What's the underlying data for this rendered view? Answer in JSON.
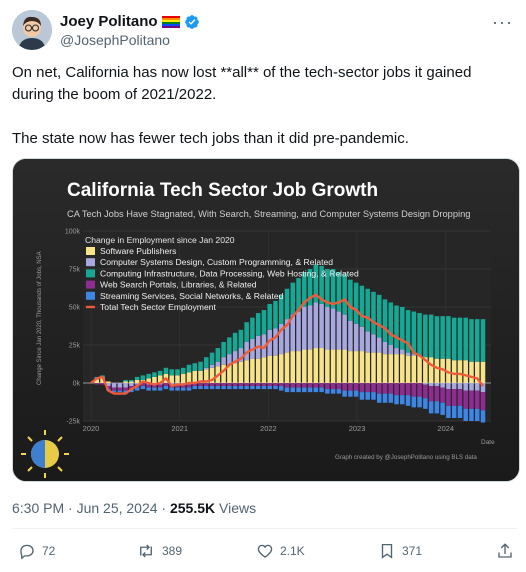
{
  "tweet": {
    "display_name": "Joey Politano",
    "handle": "@JosephPolitano",
    "text_line1": "On net, California has now lost **all** of the tech-sector jobs it gained during the boom of 2021/2022.",
    "text_line2": "The state now has fewer tech jobs than it did pre-pandemic.",
    "timestamp": "6:30 PM · Jun 25, 2024 · ",
    "views_count": "255.5K",
    "views_label": " Views",
    "actions": {
      "replies": "72",
      "reposts": "389",
      "likes": "2.1K",
      "bookmarks": "371"
    }
  },
  "chart_data": {
    "type": "bar",
    "title": "California Tech Sector Job Growth",
    "subtitle": "CA Tech Jobs Have Stagnated, With Search, Streaming, and Computer Systems Design Dropping",
    "ylabel": "Change Since Jan 2020, Thousands of Jobs, NSA",
    "xlabel": "Date",
    "legend_title": "Change in Employment since Jan 2020",
    "credit": "Graph created by @JosephPolitano using BLS data",
    "ylim": [
      -25,
      100
    ],
    "y_ticks": [
      "100k",
      "75k",
      "50k",
      "25k",
      "0k",
      "-25k"
    ],
    "y_tick_values": [
      100,
      75,
      50,
      25,
      0,
      -25
    ],
    "x_ticks": [
      "2020",
      "2021",
      "2022",
      "2023",
      "2024"
    ],
    "x_tick_positions": [
      2020.0,
      2021.0,
      2022.0,
      2023.0,
      2024.0
    ],
    "x_start": 2020.0,
    "x_end": 2024.42,
    "colors": {
      "software": "#f7e48a",
      "systems": "#a7a8e0",
      "infra": "#14a895",
      "search": "#8e2c91",
      "streaming": "#3d86e6",
      "total": "#ee5b3a"
    },
    "series_legend": [
      {
        "key": "software",
        "name": "Software Publishers",
        "color": "#f7e48a"
      },
      {
        "key": "systems",
        "name": "Computer Systems Design, Custom Programming, & Related",
        "color": "#a7a8e0"
      },
      {
        "key": "infra",
        "name": "Computing Infrastructure, Data Processing, Web Hosting, & Related",
        "color": "#14a895"
      },
      {
        "key": "search",
        "name": "Web Search Portals, Libraries, & Related",
        "color": "#8e2c91"
      },
      {
        "key": "streaming",
        "name": "Streaming Services, Social Networks, & Related",
        "color": "#3d86e6"
      },
      {
        "key": "total",
        "name": "Total Tech Sector Employment",
        "color": "#ee5b3a"
      }
    ],
    "total": [
      0,
      3,
      4,
      -5,
      -7,
      -7,
      -7,
      -4,
      -2,
      1,
      0,
      -1,
      0,
      3,
      -2,
      -1,
      -1,
      0,
      0,
      1,
      1,
      2,
      5,
      8,
      12,
      14,
      16,
      20,
      22,
      24,
      23,
      28,
      30,
      35,
      38,
      44,
      48,
      53,
      56,
      58,
      55,
      53,
      52,
      53,
      55,
      50,
      48,
      44,
      43,
      40,
      38,
      36,
      32,
      30,
      28,
      26,
      20,
      18,
      15,
      12,
      10,
      9,
      7,
      6,
      6,
      5,
      4,
      3,
      -2
    ],
    "software": [
      0,
      2,
      3,
      1,
      0,
      0,
      1,
      1,
      2,
      2,
      3,
      4,
      5,
      6,
      5,
      5,
      6,
      7,
      8,
      8,
      9,
      10,
      11,
      12,
      12,
      13,
      14,
      15,
      16,
      16,
      17,
      18,
      18,
      19,
      20,
      21,
      21,
      22,
      22,
      23,
      23,
      22,
      22,
      22,
      22,
      21,
      21,
      21,
      20,
      20,
      20,
      19,
      19,
      19,
      19,
      18,
      18,
      18,
      17,
      17,
      16,
      16,
      16,
      15,
      15,
      15,
      14,
      14,
      14
    ],
    "systems": [
      0,
      1,
      1,
      -2,
      -3,
      -3,
      -3,
      -2,
      -1,
      0,
      -1,
      -1,
      -1,
      0,
      -1,
      -1,
      -1,
      -1,
      0,
      0,
      1,
      2,
      3,
      5,
      7,
      8,
      9,
      12,
      13,
      15,
      15,
      17,
      18,
      20,
      22,
      24,
      26,
      28,
      29,
      30,
      29,
      28,
      27,
      25,
      23,
      20,
      18,
      16,
      14,
      12,
      10,
      8,
      6,
      4,
      3,
      2,
      1,
      0,
      -1,
      -2,
      -2,
      -3,
      -4,
      -4,
      -4,
      -5,
      -5,
      -5,
      -6
    ],
    "infra": [
      0,
      1,
      1,
      0,
      0,
      0,
      1,
      1,
      2,
      3,
      3,
      3,
      3,
      4,
      4,
      4,
      4,
      5,
      5,
      6,
      7,
      8,
      9,
      10,
      11,
      12,
      12,
      13,
      14,
      15,
      16,
      17,
      18,
      19,
      20,
      21,
      22,
      23,
      24,
      25,
      25,
      25,
      26,
      26,
      27,
      27,
      27,
      27,
      28,
      28,
      28,
      28,
      28,
      28,
      28,
      28,
      28,
      28,
      28,
      28,
      28,
      28,
      28,
      28,
      28,
      28,
      28,
      28,
      28
    ],
    "search": [
      0,
      -1,
      -1,
      -2,
      -2,
      -2,
      -2,
      -2,
      -2,
      -2,
      -2,
      -2,
      -2,
      -2,
      -2,
      -2,
      -2,
      -2,
      -2,
      -2,
      -2,
      -2,
      -2,
      -2,
      -2,
      -2,
      -2,
      -2,
      -2,
      -2,
      -2,
      -2,
      -2,
      -2,
      -3,
      -3,
      -3,
      -3,
      -3,
      -3,
      -3,
      -4,
      -4,
      -4,
      -5,
      -5,
      -5,
      -6,
      -6,
      -6,
      -7,
      -7,
      -7,
      -8,
      -8,
      -8,
      -9,
      -9,
      -9,
      -10,
      -10,
      -10,
      -11,
      -11,
      -11,
      -12,
      -12,
      -12,
      -12
    ],
    "streaming": [
      0,
      0,
      0,
      -1,
      -1,
      -1,
      -2,
      -2,
      -2,
      -2,
      -2,
      -2,
      -2,
      -2,
      -2,
      -2,
      -2,
      -2,
      -2,
      -2,
      -2,
      -2,
      -2,
      -2,
      -2,
      -2,
      -2,
      -2,
      -2,
      -2,
      -2,
      -2,
      -2,
      -3,
      -3,
      -3,
      -3,
      -3,
      -3,
      -3,
      -3,
      -3,
      -3,
      -3,
      -4,
      -4,
      -4,
      -5,
      -5,
      -5,
      -6,
      -6,
      -6,
      -6,
      -6,
      -7,
      -7,
      -7,
      -7,
      -8,
      -8,
      -8,
      -8,
      -8,
      -8,
      -8,
      -8,
      -8,
      -8
    ]
  }
}
